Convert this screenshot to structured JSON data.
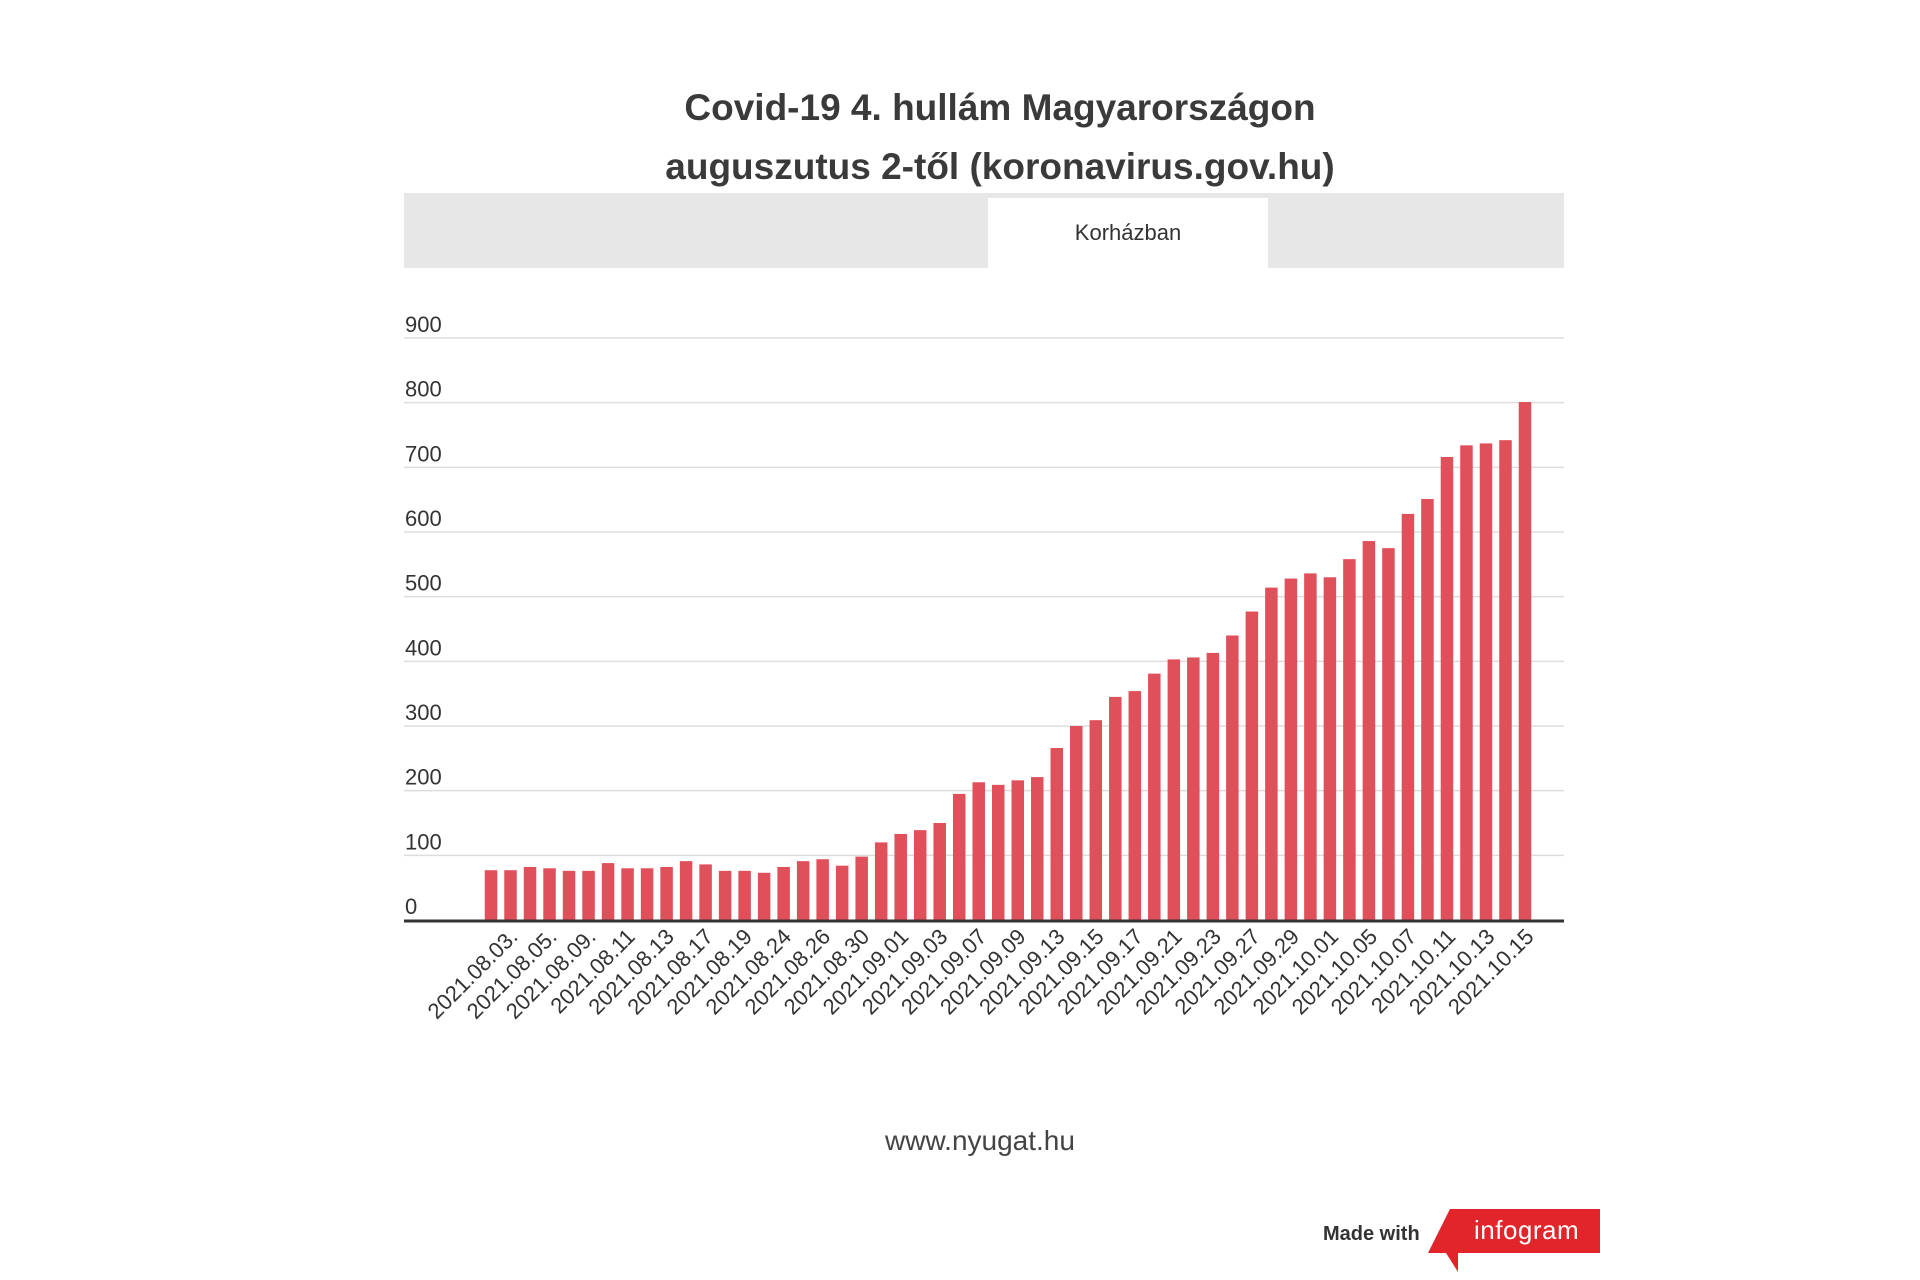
{
  "title_line1": "Covid-19 4. hullám Magyarországon",
  "title_line2": "auguszutus 2-től (koronavirus.gov.hu)",
  "tab_label": "Korházban",
  "source_text": "www.nyugat.hu",
  "footer": {
    "made_with": "Made with",
    "brand": "infogram"
  },
  "colors": {
    "bar": "#e0505a",
    "grid": "#dddddd",
    "axis": "#333333",
    "tabbar": "#e7e7e7",
    "brand": "#e1252b"
  },
  "chart_data": {
    "type": "bar",
    "ylim": [
      0,
      900
    ],
    "yticks": [
      0,
      100,
      200,
      300,
      400,
      500,
      600,
      700,
      800,
      900
    ],
    "grid": true,
    "xtick_labels": [
      "2021.08.03.",
      "2021.08.05.",
      "2021.08.09.",
      "2021.08.11",
      "2021.08.13",
      "2021.08.17",
      "2021.08.19",
      "2021.08.24",
      "2021.08.26",
      "2021.08.30",
      "2021.09.01",
      "2021.09.03",
      "2021.09.07",
      "2021.09.09",
      "2021.09.13",
      "2021.09.15",
      "2021.09.17",
      "2021.09.21",
      "2021.09.23",
      "2021.09.27",
      "2021.09.29",
      "2021.10.01",
      "2021.10.05",
      "2021.10.07",
      "2021.10.11",
      "2021.10.13",
      "2021.10.15"
    ],
    "values": [
      77,
      77,
      82,
      80,
      76,
      76,
      88,
      80,
      80,
      82,
      91,
      86,
      76,
      76,
      73,
      82,
      91,
      94,
      84,
      98,
      120,
      133,
      139,
      150,
      195,
      213,
      209,
      216,
      221,
      266,
      300,
      309,
      345,
      354,
      381,
      403,
      406,
      413,
      440,
      477,
      514,
      528,
      536,
      530,
      558,
      586,
      575,
      628,
      651,
      716,
      734,
      737,
      742,
      801
    ]
  }
}
